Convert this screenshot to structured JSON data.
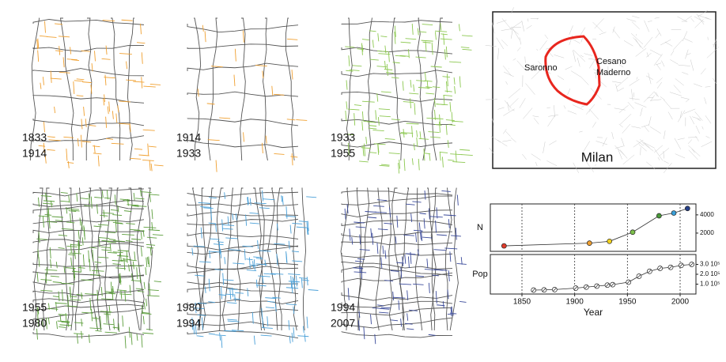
{
  "panels": [
    {
      "years": [
        "1833",
        "1914"
      ]
    },
    {
      "years": [
        "1914",
        "1933"
      ]
    },
    {
      "years": [
        "1933",
        "1955"
      ]
    },
    {
      "years": [
        "1955",
        "1980"
      ]
    },
    {
      "years": [
        "1980",
        "1994"
      ]
    },
    {
      "years": [
        "1994",
        "2007"
      ]
    }
  ],
  "inset_map": {
    "labels": {
      "left": "Saronno",
      "right": [
        "Cesano",
        "Maderno"
      ],
      "city": "Milan"
    }
  },
  "chart_data": [
    {
      "type": "scatter-line",
      "y_label": "N",
      "xlim": [
        1820,
        2015
      ],
      "ylim": [
        0,
        5200
      ],
      "yticks": [
        2000,
        4000
      ],
      "x": [
        1833,
        1914,
        1933,
        1955,
        1980,
        1994,
        2007
      ],
      "values": [
        600,
        900,
        1100,
        2100,
        3900,
        4200,
        4700
      ],
      "colors": [
        "#e03c2c",
        "#f0a030",
        "#f2d21e",
        "#7cc04a",
        "#4a9a3a",
        "#3aa0d8",
        "#26408a"
      ]
    },
    {
      "type": "scatter-line",
      "y_label": "Pop",
      "x_label": "Year",
      "xlim": [
        1820,
        2015
      ],
      "ylim": [
        0,
        400000
      ],
      "xticks": [
        1850,
        1900,
        1950,
        2000
      ],
      "yticks": [
        {
          "value": 100000,
          "label": "1.0 10⁵"
        },
        {
          "value": 200000,
          "label": "2.0 10⁵"
        },
        {
          "value": 300000,
          "label": "3.0 10⁵"
        }
      ],
      "x": [
        1861,
        1871,
        1881,
        1901,
        1911,
        1921,
        1931,
        1936,
        1951,
        1961,
        1971,
        1981,
        1991,
        2001,
        2011
      ],
      "values": [
        40000,
        42000,
        45000,
        60000,
        70000,
        80000,
        90000,
        95000,
        120000,
        180000,
        230000,
        260000,
        270000,
        290000,
        300000
      ]
    }
  ]
}
